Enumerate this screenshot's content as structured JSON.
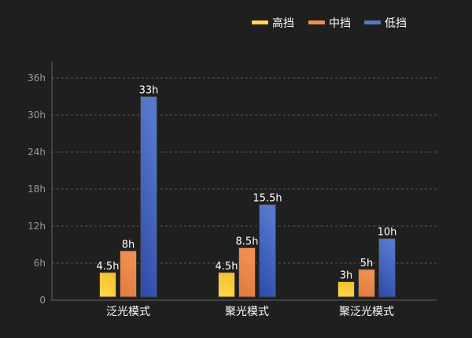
{
  "chart_data": {
    "type": "bar",
    "title": "",
    "xlabel": "",
    "ylabel": "",
    "ylim": [
      0,
      36
    ],
    "yticks": [
      "0",
      "6h",
      "12h",
      "18h",
      "24h",
      "30h",
      "36h"
    ],
    "ytick_values": [
      0,
      6,
      12,
      18,
      24,
      30,
      36
    ],
    "grid": true,
    "legend_position": "top-right",
    "categories": [
      "泛光模式",
      "聚光模式",
      "聚泛光模式"
    ],
    "series": [
      {
        "name": "高挡",
        "values": [
          4.5,
          4.5,
          3
        ],
        "labels": [
          "4.5h",
          "4.5h",
          "3h"
        ],
        "color": "#f5c230",
        "color2": "#ffd94a"
      },
      {
        "name": "中挡",
        "values": [
          8,
          8.5,
          5
        ],
        "labels": [
          "8h",
          "8.5h",
          "5h"
        ],
        "color": "#e07a40",
        "color2": "#f09050"
      },
      {
        "name": "低挡",
        "values": [
          33,
          15.5,
          10
        ],
        "labels": [
          "33h",
          "15.5h",
          "10h"
        ],
        "color": "#2c4aa8",
        "color2": "#5577cc"
      }
    ]
  }
}
